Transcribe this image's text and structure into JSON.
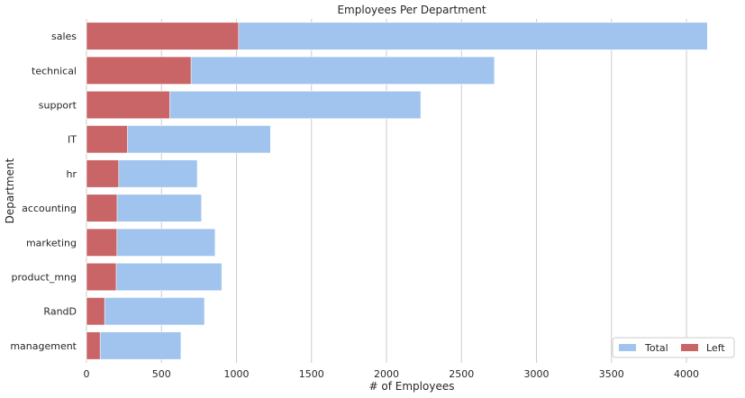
{
  "chart_data": {
    "type": "bar",
    "orientation": "horizontal",
    "title": "Employees Per Department",
    "xlabel": "# of Employees",
    "ylabel": "Department",
    "categories": [
      "sales",
      "technical",
      "support",
      "IT",
      "hr",
      "accounting",
      "marketing",
      "product_mng",
      "RandD",
      "management"
    ],
    "series": [
      {
        "name": "Total",
        "color": "#a1c4ee",
        "values": [
          4140,
          2720,
          2229,
          1227,
          739,
          767,
          858,
          902,
          787,
          630
        ]
      },
      {
        "name": "Left",
        "color": "#c96467",
        "values": [
          1014,
          697,
          555,
          273,
          215,
          204,
          203,
          198,
          121,
          91
        ]
      }
    ],
    "xlim": [
      0,
      4150
    ],
    "xticks": [
      0,
      500,
      1000,
      1500,
      2000,
      2500,
      3000,
      3500,
      4000
    ],
    "grid": "x",
    "legend_position": "bottom-right"
  }
}
